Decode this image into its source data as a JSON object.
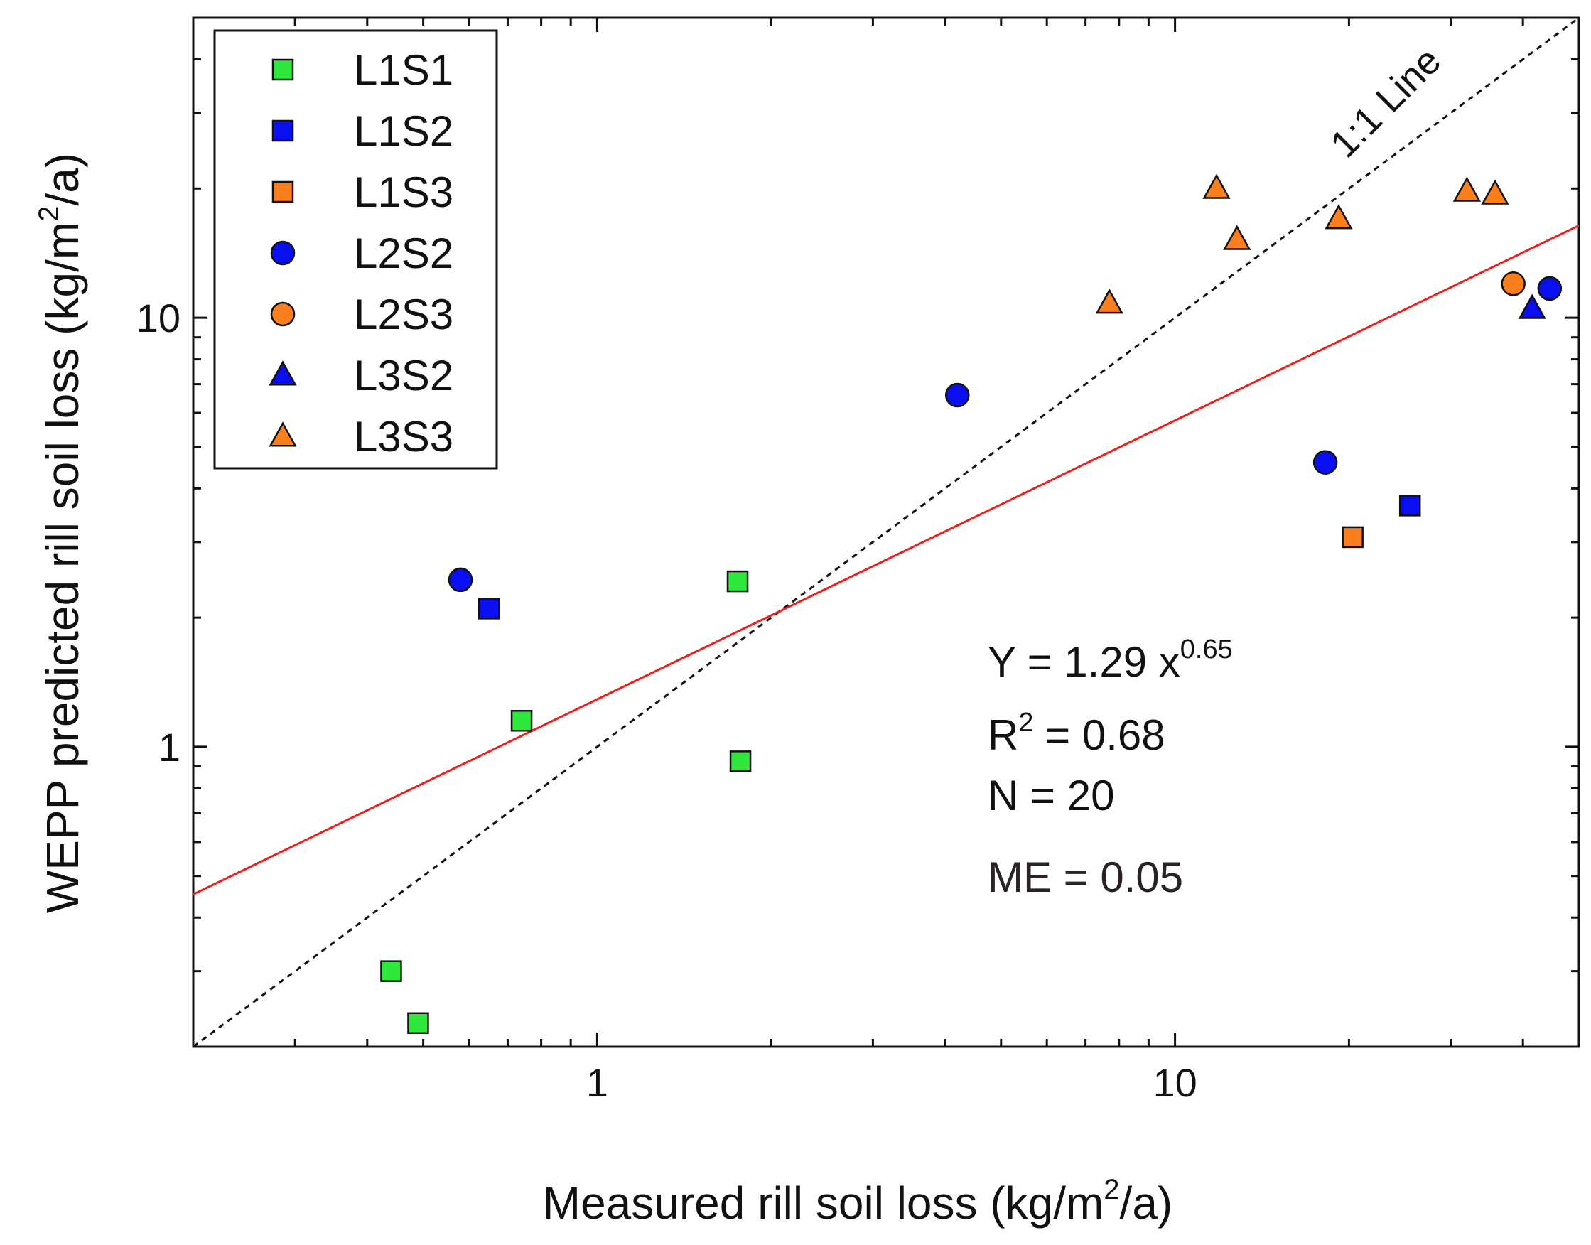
{
  "chart_data": {
    "type": "scatter",
    "title": "",
    "xlabel": "Measured rill soil loss (kg/m",
    "xlabel_sup": "2",
    "xlabel_end": "/a)",
    "ylabel": "WEPP predicted rill soil loss (kg/m",
    "ylabel_sup": "2",
    "ylabel_end": "/a)",
    "xscale": "log",
    "yscale": "log",
    "xlim": [
      0.2,
      50
    ],
    "ylim": [
      0.2,
      50
    ],
    "x_tick_labels": [
      {
        "value": 1,
        "label": "1"
      },
      {
        "value": 10,
        "label": "10"
      }
    ],
    "y_tick_labels": [
      {
        "value": 1,
        "label": "1"
      },
      {
        "value": 10,
        "label": "10"
      }
    ],
    "legend_position": "top-left",
    "colors": {
      "green": "#2ee83c",
      "blue": "#0a0ff2",
      "orange": "#fb7f1c",
      "fit_line": "#f21d1d",
      "one_to_one": "#111111"
    },
    "series": [
      {
        "name": "L1S1",
        "marker": "square",
        "color": "#2ee83c",
        "points": [
          [
            0.44,
            0.3
          ],
          [
            0.49,
            0.227
          ],
          [
            0.74,
            1.15
          ],
          [
            1.75,
            2.43
          ],
          [
            1.77,
            0.925
          ]
        ]
      },
      {
        "name": "L1S2",
        "marker": "square",
        "color": "#0a0ff2",
        "points": [
          [
            0.65,
            2.1
          ],
          [
            25.5,
            3.65
          ]
        ]
      },
      {
        "name": "L1S3",
        "marker": "square",
        "color": "#fb7f1c",
        "points": [
          [
            20.3,
            3.08
          ]
        ]
      },
      {
        "name": "L2S2",
        "marker": "circle",
        "color": "#0a0ff2",
        "points": [
          [
            0.58,
            2.45
          ],
          [
            4.2,
            6.6
          ],
          [
            18.2,
            4.6
          ],
          [
            44.5,
            11.7
          ]
        ]
      },
      {
        "name": "L2S3",
        "marker": "circle",
        "color": "#fb7f1c",
        "points": [
          [
            38.5,
            12.0
          ]
        ]
      },
      {
        "name": "L3S2",
        "marker": "triangle",
        "color": "#0a0ff2",
        "points": [
          [
            41.5,
            10.5
          ]
        ]
      },
      {
        "name": "L3S3",
        "marker": "triangle",
        "color": "#fb7f1c",
        "points": [
          [
            7.7,
            10.8
          ],
          [
            11.8,
            20.0
          ],
          [
            12.8,
            15.2
          ],
          [
            19.2,
            17.0
          ],
          [
            32.0,
            19.7
          ],
          [
            35.8,
            19.4
          ]
        ]
      }
    ],
    "fit": {
      "a": 1.29,
      "b": 0.65,
      "x_range": [
        0.2,
        50
      ]
    },
    "reference_line_label": "1:1 Line",
    "annotations": {
      "equation_prefix": "Y = 1.29 x",
      "equation_exponent": "0.65",
      "r2_prefix": "R",
      "r2_sup": "2",
      "r2_suffix": " = 0.68",
      "n_text": "N = 20",
      "me_text": "ME = 0.05"
    }
  }
}
